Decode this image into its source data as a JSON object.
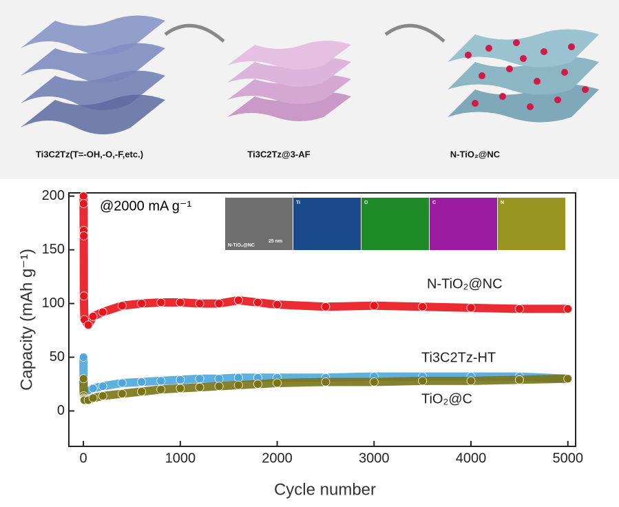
{
  "schematic": {
    "labels": [
      "Ti3C2Tz(T=-OH,-O,-F,etc.)",
      "Ti3C2Tz@3-AF",
      "N-TiO₂@NC"
    ]
  },
  "inset": {
    "panels": [
      "Ti",
      "O",
      "C",
      "N"
    ],
    "caption": "N-TiO₂@NC",
    "scale": "25 nm"
  },
  "chart_data": {
    "type": "line",
    "annotation": "@2000 mA g⁻¹",
    "x_label": "Cycle number",
    "y_label": "Capacity (mAh g⁻¹)",
    "x": [
      1,
      2,
      3,
      4,
      5,
      10,
      50,
      100,
      200,
      400,
      600,
      800,
      1000,
      1200,
      1400,
      1600,
      1800,
      2000,
      2500,
      3000,
      3500,
      4000,
      4500,
      5000
    ],
    "series": [
      {
        "name": "N-TiO₂@NC",
        "color": "#e8141c",
        "values": [
          200,
          193,
          168,
          163,
          107,
          85,
          80,
          88,
          92,
          98,
          100,
          101,
          101,
          100,
          100,
          103,
          101,
          99,
          97,
          98,
          97,
          96,
          95,
          95
        ]
      },
      {
        "name": "Ti3C2Tz-HT",
        "color": "#4ea6dc",
        "values": [
          50,
          20,
          19,
          18,
          18,
          18,
          19,
          21,
          23,
          26,
          27,
          28,
          29,
          30,
          30,
          31,
          31,
          31,
          31,
          32,
          32,
          32,
          32,
          30
        ]
      },
      {
        "name": "TiO₂@C",
        "color": "#7a7416",
        "values": [
          30,
          14,
          12,
          11,
          10,
          10,
          10,
          12,
          14,
          16,
          18,
          20,
          21,
          22,
          23,
          24,
          25,
          26,
          27,
          27,
          28,
          28,
          29,
          30
        ]
      }
    ],
    "xlim": [
      -150,
      5080
    ],
    "xticks": [
      0,
      1000,
      2000,
      3000,
      4000,
      5000
    ],
    "ylim": [
      -33,
      203
    ],
    "yticks": [
      0,
      50,
      100,
      150,
      200
    ]
  }
}
